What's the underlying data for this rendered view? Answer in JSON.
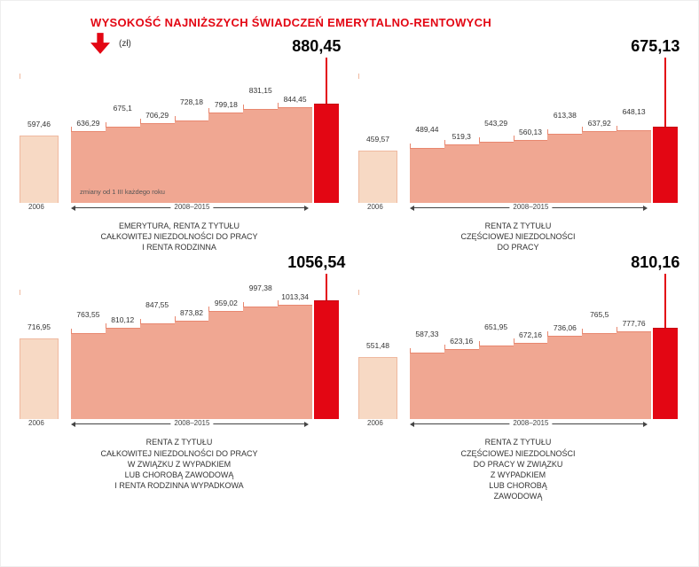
{
  "title": "WYSOKOŚĆ NAJNIŻSZYCH ŚWIADCZEŃ EMERYTALNO-RENTOWYCH",
  "unit": "(zł)",
  "colors": {
    "accent": "#e30613",
    "first_bar_fill": "#f7d9c4",
    "first_bar_border": "#efb9a0",
    "bar_fill": "#f0a792",
    "bar_border": "#e8876f",
    "background": "#ffffff",
    "text": "#333333"
  },
  "xaxis": {
    "year_start": "2006",
    "year_range": "2008–2015"
  },
  "footnote": "zmiany od 1 III każdego roku",
  "panels": [
    {
      "id": "p1",
      "max": 1100,
      "first_value": "597,46",
      "first_height_ratio": 0.543,
      "final_value": "880,45",
      "final_height_ratio": 0.8,
      "values": [
        {
          "label": "636,29",
          "ratio": 0.578,
          "pos": "down"
        },
        {
          "label": "675,1",
          "ratio": 0.614,
          "pos": "up"
        },
        {
          "label": "706,29",
          "ratio": 0.642,
          "pos": "down"
        },
        {
          "label": "728,18",
          "ratio": 0.662,
          "pos": "up"
        },
        {
          "label": "799,18",
          "ratio": 0.727,
          "pos": "down"
        },
        {
          "label": "831,15",
          "ratio": 0.756,
          "pos": "up"
        },
        {
          "label": "844,45",
          "ratio": 0.768,
          "pos": "down"
        }
      ],
      "caption": [
        "EMERYTURA, RENTA Z TYTUŁU",
        "CAŁKOWITEJ NIEZDOLNOŚCI DO PRACY",
        "I RENTA RODZINNA"
      ],
      "show_footnote": true
    },
    {
      "id": "p2",
      "max": 1100,
      "first_value": "459,57",
      "first_height_ratio": 0.418,
      "final_value": "675,13",
      "final_height_ratio": 0.614,
      "values": [
        {
          "label": "489,44",
          "ratio": 0.445,
          "pos": "up"
        },
        {
          "label": "519,3",
          "ratio": 0.472,
          "pos": "down"
        },
        {
          "label": "543,29",
          "ratio": 0.494,
          "pos": "up"
        },
        {
          "label": "560,13",
          "ratio": 0.509,
          "pos": "down"
        },
        {
          "label": "613,38",
          "ratio": 0.558,
          "pos": "up"
        },
        {
          "label": "637,92",
          "ratio": 0.58,
          "pos": "down"
        },
        {
          "label": "648,13",
          "ratio": 0.589,
          "pos": "up"
        }
      ],
      "caption": [
        "RENTA Z TYTUŁU",
        "CZĘŚCIOWEJ NIEZDOLNOŚCI",
        "DO PRACY"
      ],
      "show_footnote": false
    },
    {
      "id": "p3",
      "max": 1100,
      "first_value": "716,95",
      "first_height_ratio": 0.652,
      "final_value": "1056,54",
      "final_height_ratio": 0.96,
      "values": [
        {
          "label": "763,55",
          "ratio": 0.694,
          "pos": "up"
        },
        {
          "label": "810,12",
          "ratio": 0.736,
          "pos": "down"
        },
        {
          "label": "847,55",
          "ratio": 0.771,
          "pos": "up"
        },
        {
          "label": "873,82",
          "ratio": 0.794,
          "pos": "down"
        },
        {
          "label": "959,02",
          "ratio": 0.872,
          "pos": "down"
        },
        {
          "label": "997,38",
          "ratio": 0.907,
          "pos": "up"
        },
        {
          "label": "1013,34",
          "ratio": 0.921,
          "pos": "down"
        }
      ],
      "caption": [
        "RENTA Z TYTUŁU",
        "CAŁKOWITEJ NIEZDOLNOŚCI DO PRACY",
        "W ZWIĄZKU Z WYPADKIEM",
        "LUB CHOROBĄ ZAWODOWĄ",
        "I RENTA RODZINNA WYPADKOWA"
      ],
      "show_footnote": false
    },
    {
      "id": "p4",
      "max": 1100,
      "first_value": "551,48",
      "first_height_ratio": 0.501,
      "final_value": "810,16",
      "final_height_ratio": 0.737,
      "values": [
        {
          "label": "587,33",
          "ratio": 0.534,
          "pos": "up"
        },
        {
          "label": "623,16",
          "ratio": 0.567,
          "pos": "down"
        },
        {
          "label": "651,95",
          "ratio": 0.593,
          "pos": "up"
        },
        {
          "label": "672,16",
          "ratio": 0.611,
          "pos": "down"
        },
        {
          "label": "736,06",
          "ratio": 0.669,
          "pos": "down"
        },
        {
          "label": "765,5",
          "ratio": 0.696,
          "pos": "up"
        },
        {
          "label": "777,76",
          "ratio": 0.707,
          "pos": "down"
        }
      ],
      "caption": [
        "RENTA Z TYTUŁU",
        "CZĘŚCIOWEJ NIEZDOLNOŚCI",
        "DO PRACY W ZWIĄZKU",
        "Z WYPADKIEM",
        "LUB CHOROBĄ",
        "ZAWODOWĄ"
      ],
      "show_footnote": false
    }
  ]
}
